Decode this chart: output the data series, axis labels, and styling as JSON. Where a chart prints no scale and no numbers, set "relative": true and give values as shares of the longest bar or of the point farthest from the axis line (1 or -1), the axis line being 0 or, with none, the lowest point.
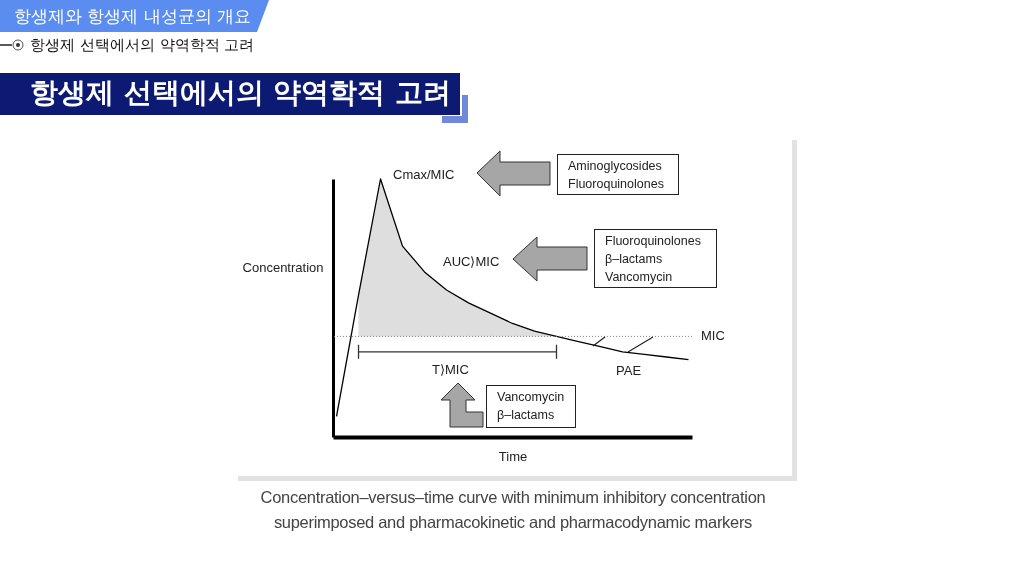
{
  "chart_data": {
    "type": "line",
    "title": "항생제 선택에서의 약역학적 고려",
    "subtitle": "항생제 선택에서의 약역학적 고려",
    "xlabel": "Time",
    "ylabel": "Concentration",
    "relative": true,
    "categories": [
      null,
      null,
      null,
      null,
      null,
      null,
      null,
      null,
      null,
      null,
      null,
      null,
      null,
      null,
      null,
      null,
      null
    ],
    "series": [
      {
        "color": "#000000",
        "values": [
          0.08,
          0.55,
          1,
          0.74,
          0.64,
          0.57,
          0.52,
          0.48,
          0.44,
          0.41,
          0.39,
          0.37,
          0.35,
          0.33,
          0.32,
          0.31,
          0.3
        ],
        "lower": [
          null,
          0.39,
          0.39,
          0.39,
          0.39,
          0.39,
          0.39,
          0.39,
          0.39,
          0.39,
          0.39,
          null,
          null,
          null,
          null,
          null,
          null
        ],
        "upper": [
          null,
          0.55,
          1,
          0.74,
          0.64,
          0.57,
          0.52,
          0.48,
          0.44,
          0.41,
          0.39,
          null,
          null,
          null,
          null,
          null,
          null
        ]
      },
      {
        "type": "line",
        "color": "#333333",
        "values": [
          null,
          0.33,
          0.33,
          0.33,
          0.33,
          0.33,
          0.33,
          0.33,
          0.33,
          0.33,
          0.33,
          null,
          null,
          null,
          null,
          null,
          null
        ]
      }
    ],
    "ref_lines": [
      {
        "axis": "y",
        "value": 0.39,
        "label": "MIC",
        "line_style": "dotted",
        "color": "#808080"
      }
    ],
    "annotations": [
      "항생제와 항생제 내성균의 개요",
      "Cmax/MIC",
      "AUC⟩MIC",
      "T⟩MIC",
      "PAE",
      "Aminoglycosides\nFluoroquinolones",
      "Fluoroquinolones\nβ–lactams\nVancomycin",
      "Vancomycin\nβ–lactams",
      "Concentration–versus–time curve with minimum inhibitory concentration superimposed and pharmacokinetic and pharmacodynamic markers"
    ]
  }
}
